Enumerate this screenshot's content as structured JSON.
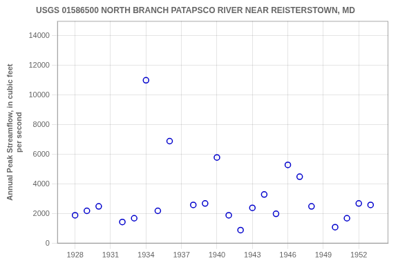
{
  "chart_data": {
    "type": "scatter",
    "title": "USGS 01586500 NORTH BRANCH PATAPSCO RIVER NEAR REISTERSTOWN, MD",
    "y_label": "Annual Peak Streamflow, in cubic feet\nper second",
    "x": [
      1928,
      1929,
      1930,
      1932,
      1933,
      1934,
      1935,
      1936,
      1938,
      1939,
      1940,
      1941,
      1942,
      1943,
      1944,
      1945,
      1946,
      1947,
      1948,
      1950,
      1951,
      1952,
      1953
    ],
    "values": [
      1900,
      2200,
      2500,
      1450,
      1700,
      11000,
      2200,
      6900,
      2600,
      2700,
      5800,
      1900,
      900,
      2400,
      3300,
      2000,
      5300,
      4500,
      2500,
      1100,
      1700,
      2700,
      2600
    ],
    "color": "#0000CC",
    "marker": "circle",
    "xlim": [
      1926.5,
      1954.5
    ],
    "ylim": [
      0,
      15000
    ],
    "xticks": [
      1928,
      1931,
      1934,
      1937,
      1940,
      1943,
      1946,
      1949,
      1952
    ],
    "yticks": [
      0,
      2000,
      4000,
      6000,
      8000,
      10000,
      12000,
      14000
    ],
    "grid": true
  }
}
